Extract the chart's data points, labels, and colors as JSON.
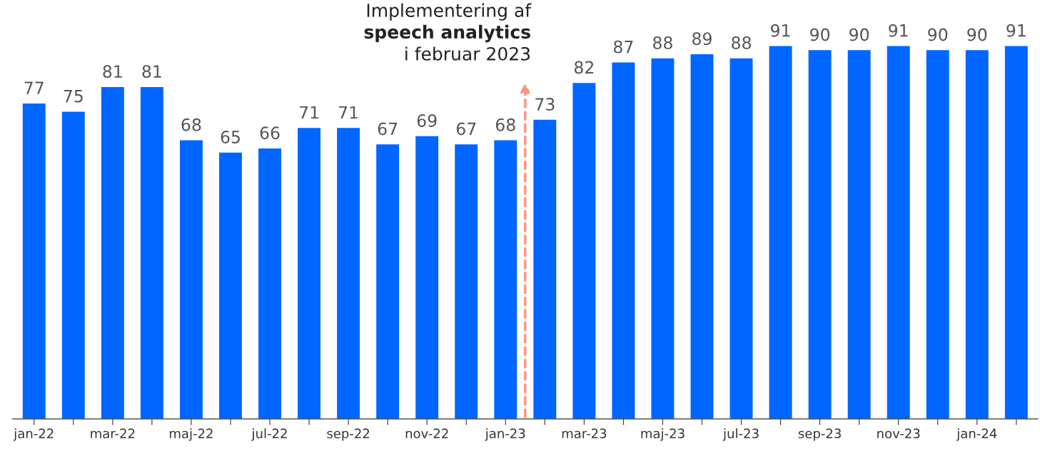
{
  "chart_data": {
    "type": "bar",
    "categories": [
      "jan-22",
      null,
      "mar-22",
      null,
      "maj-22",
      null,
      "jul-22",
      null,
      "sep-22",
      null,
      "nov-22",
      null,
      "jan-23",
      null,
      "mar-23",
      null,
      "maj-23",
      null,
      "jul-23",
      null,
      "sep-23",
      null,
      "nov-23",
      null,
      "jan-24",
      null
    ],
    "values": [
      77,
      75,
      81,
      81,
      68,
      65,
      66,
      71,
      71,
      67,
      69,
      67,
      68,
      73,
      82,
      87,
      88,
      89,
      88,
      91,
      90,
      90,
      91,
      90,
      90,
      91
    ],
    "color": "#0066ff",
    "data_labels": true,
    "tick_labels": "x",
    "grid": false,
    "annotations": [
      "Implementering af\nspeech analytics\ni februar 2023"
    ]
  }
}
